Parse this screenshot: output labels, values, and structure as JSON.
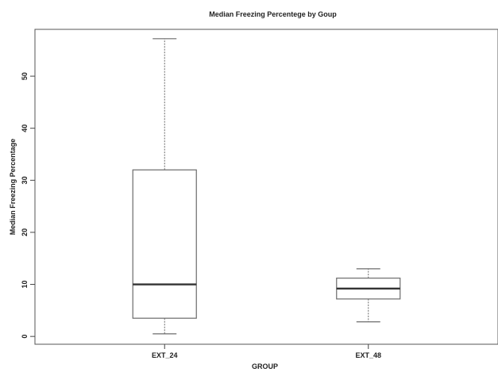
{
  "chart_data": {
    "type": "box",
    "title": "Median Freezing Percentege by Goup",
    "xlabel": "GROUP",
    "ylabel": "Median Freezing Percentage",
    "categories": [
      "EXT_24",
      "EXT_48"
    ],
    "ylim": [
      -1.5,
      59
    ],
    "yticks": [
      0,
      10,
      20,
      30,
      40,
      50
    ],
    "ytick_labels": [
      "0",
      "10",
      "20",
      "30",
      "40",
      "50"
    ],
    "boxes": [
      {
        "category": "EXT_24",
        "min": 0.5,
        "q1": 3.5,
        "median": 10,
        "q3": 32,
        "max": 57.2
      },
      {
        "category": "EXT_48",
        "min": 2.8,
        "q1": 7.2,
        "median": 9.2,
        "q3": 11.2,
        "max": 13
      }
    ],
    "grid": false
  }
}
